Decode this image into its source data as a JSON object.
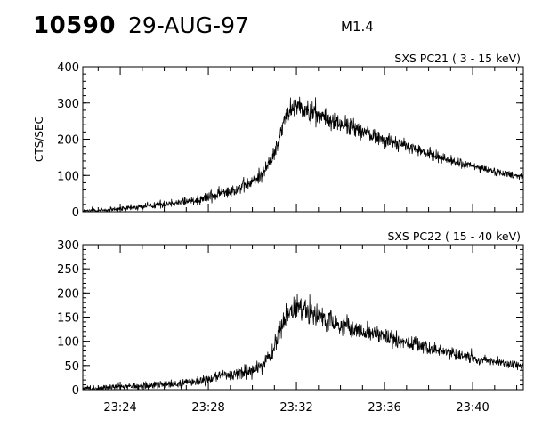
{
  "header": {
    "flare_id": "10590",
    "date": "29-AUG-97",
    "class": "M1.4"
  },
  "chart_data": [
    {
      "type": "line",
      "title": "SXS PC21  (  3 - 15 keV)",
      "ylabel": "CTS/SEC",
      "xlabel": "",
      "x_unit": "minutes after 23:00 UT",
      "xlim": [
        22.3,
        42.3
      ],
      "ylim": [
        0,
        400
      ],
      "yticks": [
        "0",
        "100",
        "200",
        "300",
        "400"
      ],
      "xticks": [],
      "profile": {
        "x": [
          22.3,
          23.5,
          24.5,
          25.5,
          26.5,
          27.5,
          28.5,
          29.2,
          30.0,
          30.5,
          30.9,
          31.2,
          31.5,
          31.8,
          32.0,
          32.3,
          32.8,
          33.5,
          34.5,
          35.5,
          36.5,
          37.5,
          38.5,
          39.5,
          40.5,
          41.5,
          42.3
        ],
        "y": [
          2,
          5,
          10,
          18,
          25,
          33,
          48,
          62,
          80,
          110,
          145,
          200,
          260,
          290,
          300,
          285,
          270,
          252,
          232,
          210,
          190,
          170,
          150,
          132,
          118,
          105,
          97
        ],
        "noise": [
          3,
          5,
          6,
          7,
          8,
          10,
          12,
          13,
          15,
          15,
          15,
          18,
          20,
          20,
          20,
          20,
          20,
          18,
          18,
          16,
          14,
          12,
          10,
          9,
          8,
          7,
          7
        ]
      }
    },
    {
      "type": "line",
      "title": "SXS PC22  ( 15 - 40 keV)",
      "ylabel": "",
      "xlabel": "",
      "x_unit": "minutes after 23:00 UT",
      "xlim": [
        22.3,
        42.3
      ],
      "ylim": [
        0,
        300
      ],
      "yticks": [
        "0",
        "50",
        "100",
        "150",
        "200",
        "250",
        "300"
      ],
      "xticks": [
        {
          "value": 24,
          "label": "23:24"
        },
        {
          "value": 28,
          "label": "23:28"
        },
        {
          "value": 32,
          "label": "23:32"
        },
        {
          "value": 36,
          "label": "23:36"
        },
        {
          "value": 40,
          "label": "23:40"
        }
      ],
      "profile": {
        "x": [
          22.3,
          23.5,
          24.5,
          25.5,
          26.5,
          27.5,
          28.5,
          29.2,
          30.0,
          30.5,
          30.9,
          31.2,
          31.5,
          31.8,
          32.0,
          32.3,
          32.8,
          33.5,
          34.5,
          35.5,
          36.5,
          37.5,
          38.5,
          39.5,
          40.5,
          41.5,
          42.3
        ],
        "y": [
          2,
          4,
          6,
          9,
          12,
          18,
          26,
          32,
          40,
          52,
          75,
          115,
          150,
          162,
          170,
          162,
          152,
          140,
          128,
          115,
          103,
          92,
          80,
          70,
          62,
          54,
          48
        ],
        "noise": [
          4,
          5,
          6,
          6,
          7,
          8,
          9,
          10,
          11,
          12,
          13,
          15,
          17,
          17,
          17,
          16,
          16,
          15,
          14,
          13,
          12,
          10,
          9,
          8,
          7,
          6,
          6
        ]
      }
    }
  ]
}
